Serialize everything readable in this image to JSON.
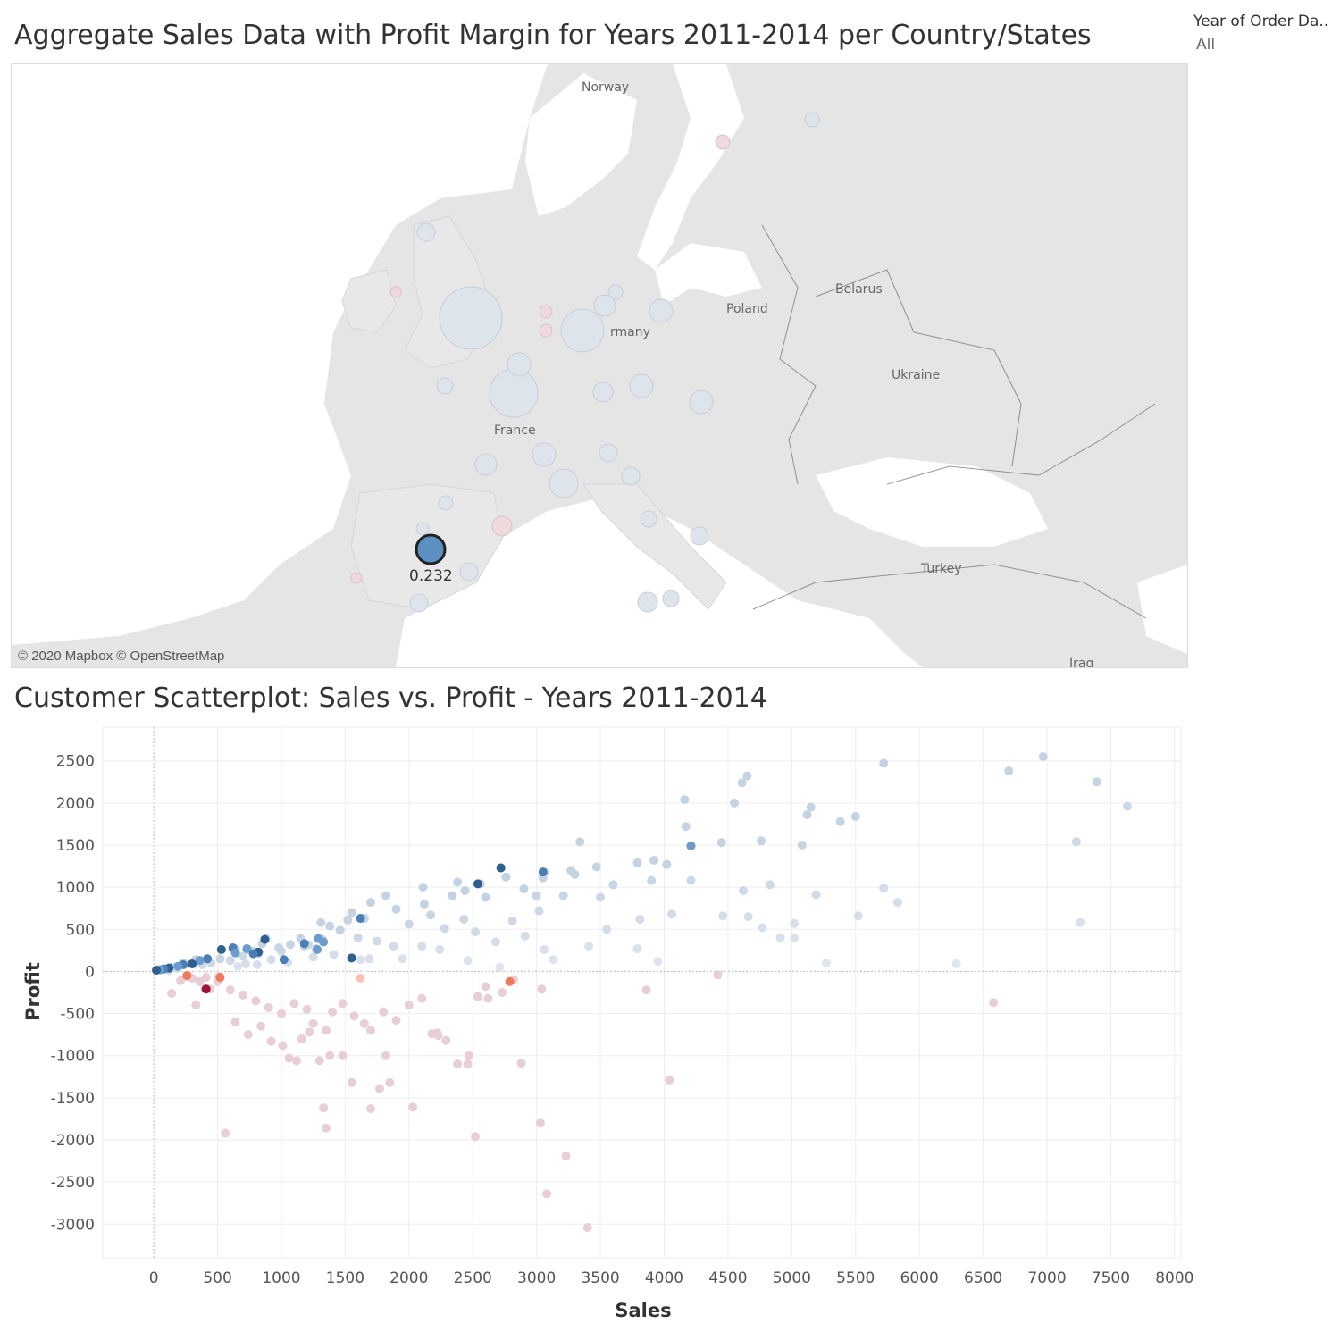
{
  "map": {
    "title": "Aggregate Sales Data with Profit Margin for Years 2011-2014 per Country/States",
    "attribution": "© 2020 Mapbox © OpenStreetMap",
    "selected_label": "0.232",
    "place_labels": [
      "Norway",
      "Poland",
      "Belarus",
      "rmany",
      "Ukraine",
      "France",
      "Turkey",
      "Iraq"
    ],
    "colors": {
      "land": "#e5e5e5",
      "sea": "#ffffff",
      "selected": "#5b90c1",
      "positive": "#dfe6ee",
      "negative": "#ecd3dc"
    }
  },
  "filter": {
    "label": "Year of Order Da..",
    "value": "All"
  },
  "chart_data": {
    "type": "scatter",
    "title": "Customer Scatterplot: Sales vs. Profit - Years 2011-2014",
    "xlabel": "Sales",
    "ylabel": "Profit",
    "xlim": [
      -400,
      8050
    ],
    "ylim": [
      -3400,
      2900
    ],
    "x_ticks": [
      0,
      500,
      1000,
      1500,
      2000,
      2500,
      3000,
      3500,
      4000,
      4500,
      5000,
      5500,
      6000,
      6500,
      7000,
      7500,
      8000
    ],
    "y_ticks": [
      2500,
      2000,
      1500,
      1000,
      500,
      0,
      -500,
      -1000,
      -1500,
      -2000,
      -2500,
      -3000
    ],
    "grid": true,
    "points": [
      [
        6970,
        2550
      ],
      [
        5720,
        2470
      ],
      [
        6700,
        2380
      ],
      [
        4650,
        2320
      ],
      [
        4610,
        2240
      ],
      [
        7390,
        2250
      ],
      [
        4160,
        2040
      ],
      [
        4550,
        2000
      ],
      [
        5150,
        1950
      ],
      [
        5120,
        1860
      ],
      [
        7630,
        1960
      ],
      [
        5500,
        1840
      ],
      [
        5380,
        1780
      ],
      [
        4170,
        1720
      ],
      [
        3340,
        1540
      ],
      [
        4450,
        1530
      ],
      [
        4760,
        1550
      ],
      [
        5080,
        1500
      ],
      [
        7230,
        1540
      ],
      [
        4210,
        1490
      ],
      [
        3060,
        1180
      ],
      [
        2720,
        1230
      ],
      [
        3270,
        1200
      ],
      [
        3920,
        1320
      ],
      [
        3790,
        1290
      ],
      [
        4020,
        1270
      ],
      [
        3470,
        1240
      ],
      [
        3300,
        1150
      ],
      [
        3600,
        1030
      ],
      [
        4210,
        1080
      ],
      [
        4830,
        1030
      ],
      [
        5720,
        990
      ],
      [
        4620,
        960
      ],
      [
        5190,
        910
      ],
      [
        5830,
        820
      ],
      [
        3900,
        1080
      ],
      [
        3210,
        900
      ],
      [
        3810,
        620
      ],
      [
        4060,
        680
      ],
      [
        4460,
        660
      ],
      [
        4660,
        650
      ],
      [
        5020,
        570
      ],
      [
        4770,
        520
      ],
      [
        4910,
        400
      ],
      [
        5020,
        400
      ],
      [
        5520,
        660
      ],
      [
        7260,
        580
      ],
      [
        3550,
        500
      ],
      [
        3790,
        270
      ],
      [
        3950,
        120
      ],
      [
        5270,
        100
      ],
      [
        6290,
        90
      ],
      [
        3410,
        300
      ],
      [
        3060,
        260
      ],
      [
        3130,
        140
      ],
      [
        2560,
        1040
      ],
      [
        2380,
        1060
      ],
      [
        2340,
        900
      ],
      [
        2900,
        980
      ],
      [
        2600,
        880
      ],
      [
        2120,
        800
      ],
      [
        1820,
        900
      ],
      [
        1650,
        630
      ],
      [
        1700,
        820
      ],
      [
        1900,
        740
      ],
      [
        2000,
        560
      ],
      [
        2170,
        670
      ],
      [
        2280,
        510
      ],
      [
        2430,
        620
      ],
      [
        2520,
        470
      ],
      [
        2680,
        350
      ],
      [
        2810,
        600
      ],
      [
        2910,
        420
      ],
      [
        3020,
        720
      ],
      [
        2100,
        300
      ],
      [
        2240,
        260
      ],
      [
        2460,
        130
      ],
      [
        2710,
        50
      ],
      [
        1380,
        540
      ],
      [
        1460,
        490
      ],
      [
        1550,
        700
      ],
      [
        1600,
        400
      ],
      [
        1750,
        360
      ],
      [
        1880,
        300
      ],
      [
        1950,
        150
      ],
      [
        1150,
        390
      ],
      [
        1320,
        380
      ],
      [
        1270,
        270
      ],
      [
        1070,
        320
      ],
      [
        1000,
        240
      ],
      [
        920,
        140
      ],
      [
        850,
        330
      ],
      [
        780,
        240
      ],
      [
        700,
        180
      ],
      [
        600,
        130
      ],
      [
        520,
        150
      ],
      [
        450,
        100
      ],
      [
        380,
        80
      ],
      [
        310,
        90
      ],
      [
        240,
        80
      ],
      [
        190,
        60
      ],
      [
        140,
        50
      ],
      [
        90,
        30
      ],
      [
        60,
        20
      ],
      [
        30,
        15
      ],
      [
        880,
        390
      ],
      [
        1310,
        580
      ],
      [
        1520,
        610
      ],
      [
        980,
        280
      ],
      [
        1180,
        300
      ],
      [
        1410,
        200
      ],
      [
        1620,
        140
      ],
      [
        1250,
        170
      ],
      [
        1050,
        110
      ],
      [
        810,
        80
      ],
      [
        720,
        90
      ],
      [
        660,
        60
      ],
      [
        300,
        -80
      ],
      [
        400,
        -200
      ],
      [
        500,
        -120
      ],
      [
        600,
        -220
      ],
      [
        700,
        -280
      ],
      [
        800,
        -350
      ],
      [
        900,
        -430
      ],
      [
        1000,
        -500
      ],
      [
        1100,
        -380
      ],
      [
        1200,
        -450
      ],
      [
        1250,
        -620
      ],
      [
        1350,
        -700
      ],
      [
        1400,
        -480
      ],
      [
        1480,
        -380
      ],
      [
        1570,
        -530
      ],
      [
        1650,
        -620
      ],
      [
        1700,
        -700
      ],
      [
        1800,
        -480
      ],
      [
        1900,
        -580
      ],
      [
        2000,
        -400
      ],
      [
        2100,
        -320
      ],
      [
        2220,
        -730
      ],
      [
        2290,
        -820
      ],
      [
        2380,
        -1100
      ],
      [
        2470,
        -1000
      ],
      [
        2600,
        -180
      ],
      [
        2730,
        -250
      ],
      [
        2820,
        -100
      ],
      [
        2880,
        -1090
      ],
      [
        3040,
        -210
      ],
      [
        3860,
        -220
      ],
      [
        4420,
        -40
      ],
      [
        6580,
        -370
      ],
      [
        1060,
        -1030
      ],
      [
        1120,
        -1060
      ],
      [
        1300,
        -1060
      ],
      [
        1380,
        -1000
      ],
      [
        1480,
        -1000
      ],
      [
        1550,
        -1320
      ],
      [
        1770,
        -1390
      ],
      [
        1850,
        -1320
      ],
      [
        1700,
        -1630
      ],
      [
        1330,
        -1620
      ],
      [
        1350,
        -1860
      ],
      [
        2030,
        -1610
      ],
      [
        2520,
        -1960
      ],
      [
        3030,
        -1800
      ],
      [
        3230,
        -2190
      ],
      [
        3080,
        -2640
      ],
      [
        3400,
        -3040
      ],
      [
        4040,
        -1290
      ],
      [
        560,
        -1920
      ],
      [
        840,
        -650
      ],
      [
        640,
        -600
      ],
      [
        740,
        -750
      ],
      [
        920,
        -830
      ],
      [
        1010,
        -880
      ],
      [
        1160,
        -800
      ],
      [
        1220,
        -720
      ],
      [
        210,
        -110
      ],
      [
        280,
        -60
      ],
      [
        140,
        -260
      ],
      [
        330,
        -400
      ],
      [
        1820,
        -1000
      ],
      [
        2180,
        -740
      ],
      [
        2230,
        -760
      ],
      [
        2460,
        -1100
      ],
      [
        2620,
        -320
      ],
      [
        2540,
        -300
      ],
      [
        440,
        -210
      ],
      [
        360,
        -120
      ],
      [
        260,
        -60
      ],
      [
        410,
        -70
      ],
      [
        510,
        -60
      ],
      [
        2790,
        -120
      ],
      [
        230,
        100
      ],
      [
        330,
        140
      ],
      [
        420,
        150
      ],
      [
        640,
        270
      ],
      [
        730,
        260
      ],
      [
        870,
        380
      ],
      [
        1210,
        320
      ],
      [
        1330,
        350
      ],
      [
        1690,
        150
      ],
      [
        820,
        210
      ],
      [
        120,
        10
      ],
      [
        180,
        40
      ],
      [
        2110,
        1000
      ],
      [
        2440,
        960
      ],
      [
        2760,
        1120
      ],
      [
        3050,
        1110
      ],
      [
        3000,
        900
      ],
      [
        3500,
        880
      ]
    ],
    "highlighted_points": [
      [
        2720,
        1230
      ],
      [
        3050,
        1180
      ],
      [
        4210,
        1490
      ],
      [
        2540,
        1040
      ],
      [
        1620,
        630
      ],
      [
        1290,
        390
      ],
      [
        870,
        380
      ],
      [
        620,
        280
      ],
      [
        730,
        270
      ],
      [
        530,
        260
      ],
      [
        420,
        150
      ],
      [
        360,
        130
      ],
      [
        300,
        90
      ],
      [
        230,
        80
      ],
      [
        190,
        60
      ],
      [
        120,
        40
      ],
      [
        80,
        30
      ],
      [
        50,
        20
      ],
      [
        20,
        15
      ],
      [
        1180,
        330
      ],
      [
        1330,
        350
      ],
      [
        820,
        230
      ],
      [
        780,
        210
      ],
      [
        1280,
        260
      ],
      [
        1550,
        160
      ],
      [
        1020,
        140
      ],
      [
        640,
        220
      ]
    ],
    "negative_highlighted_points": [
      [
        410,
        -210
      ],
      [
        260,
        -50
      ],
      [
        520,
        -70
      ],
      [
        2790,
        -120
      ],
      [
        1620,
        -80
      ]
    ]
  }
}
